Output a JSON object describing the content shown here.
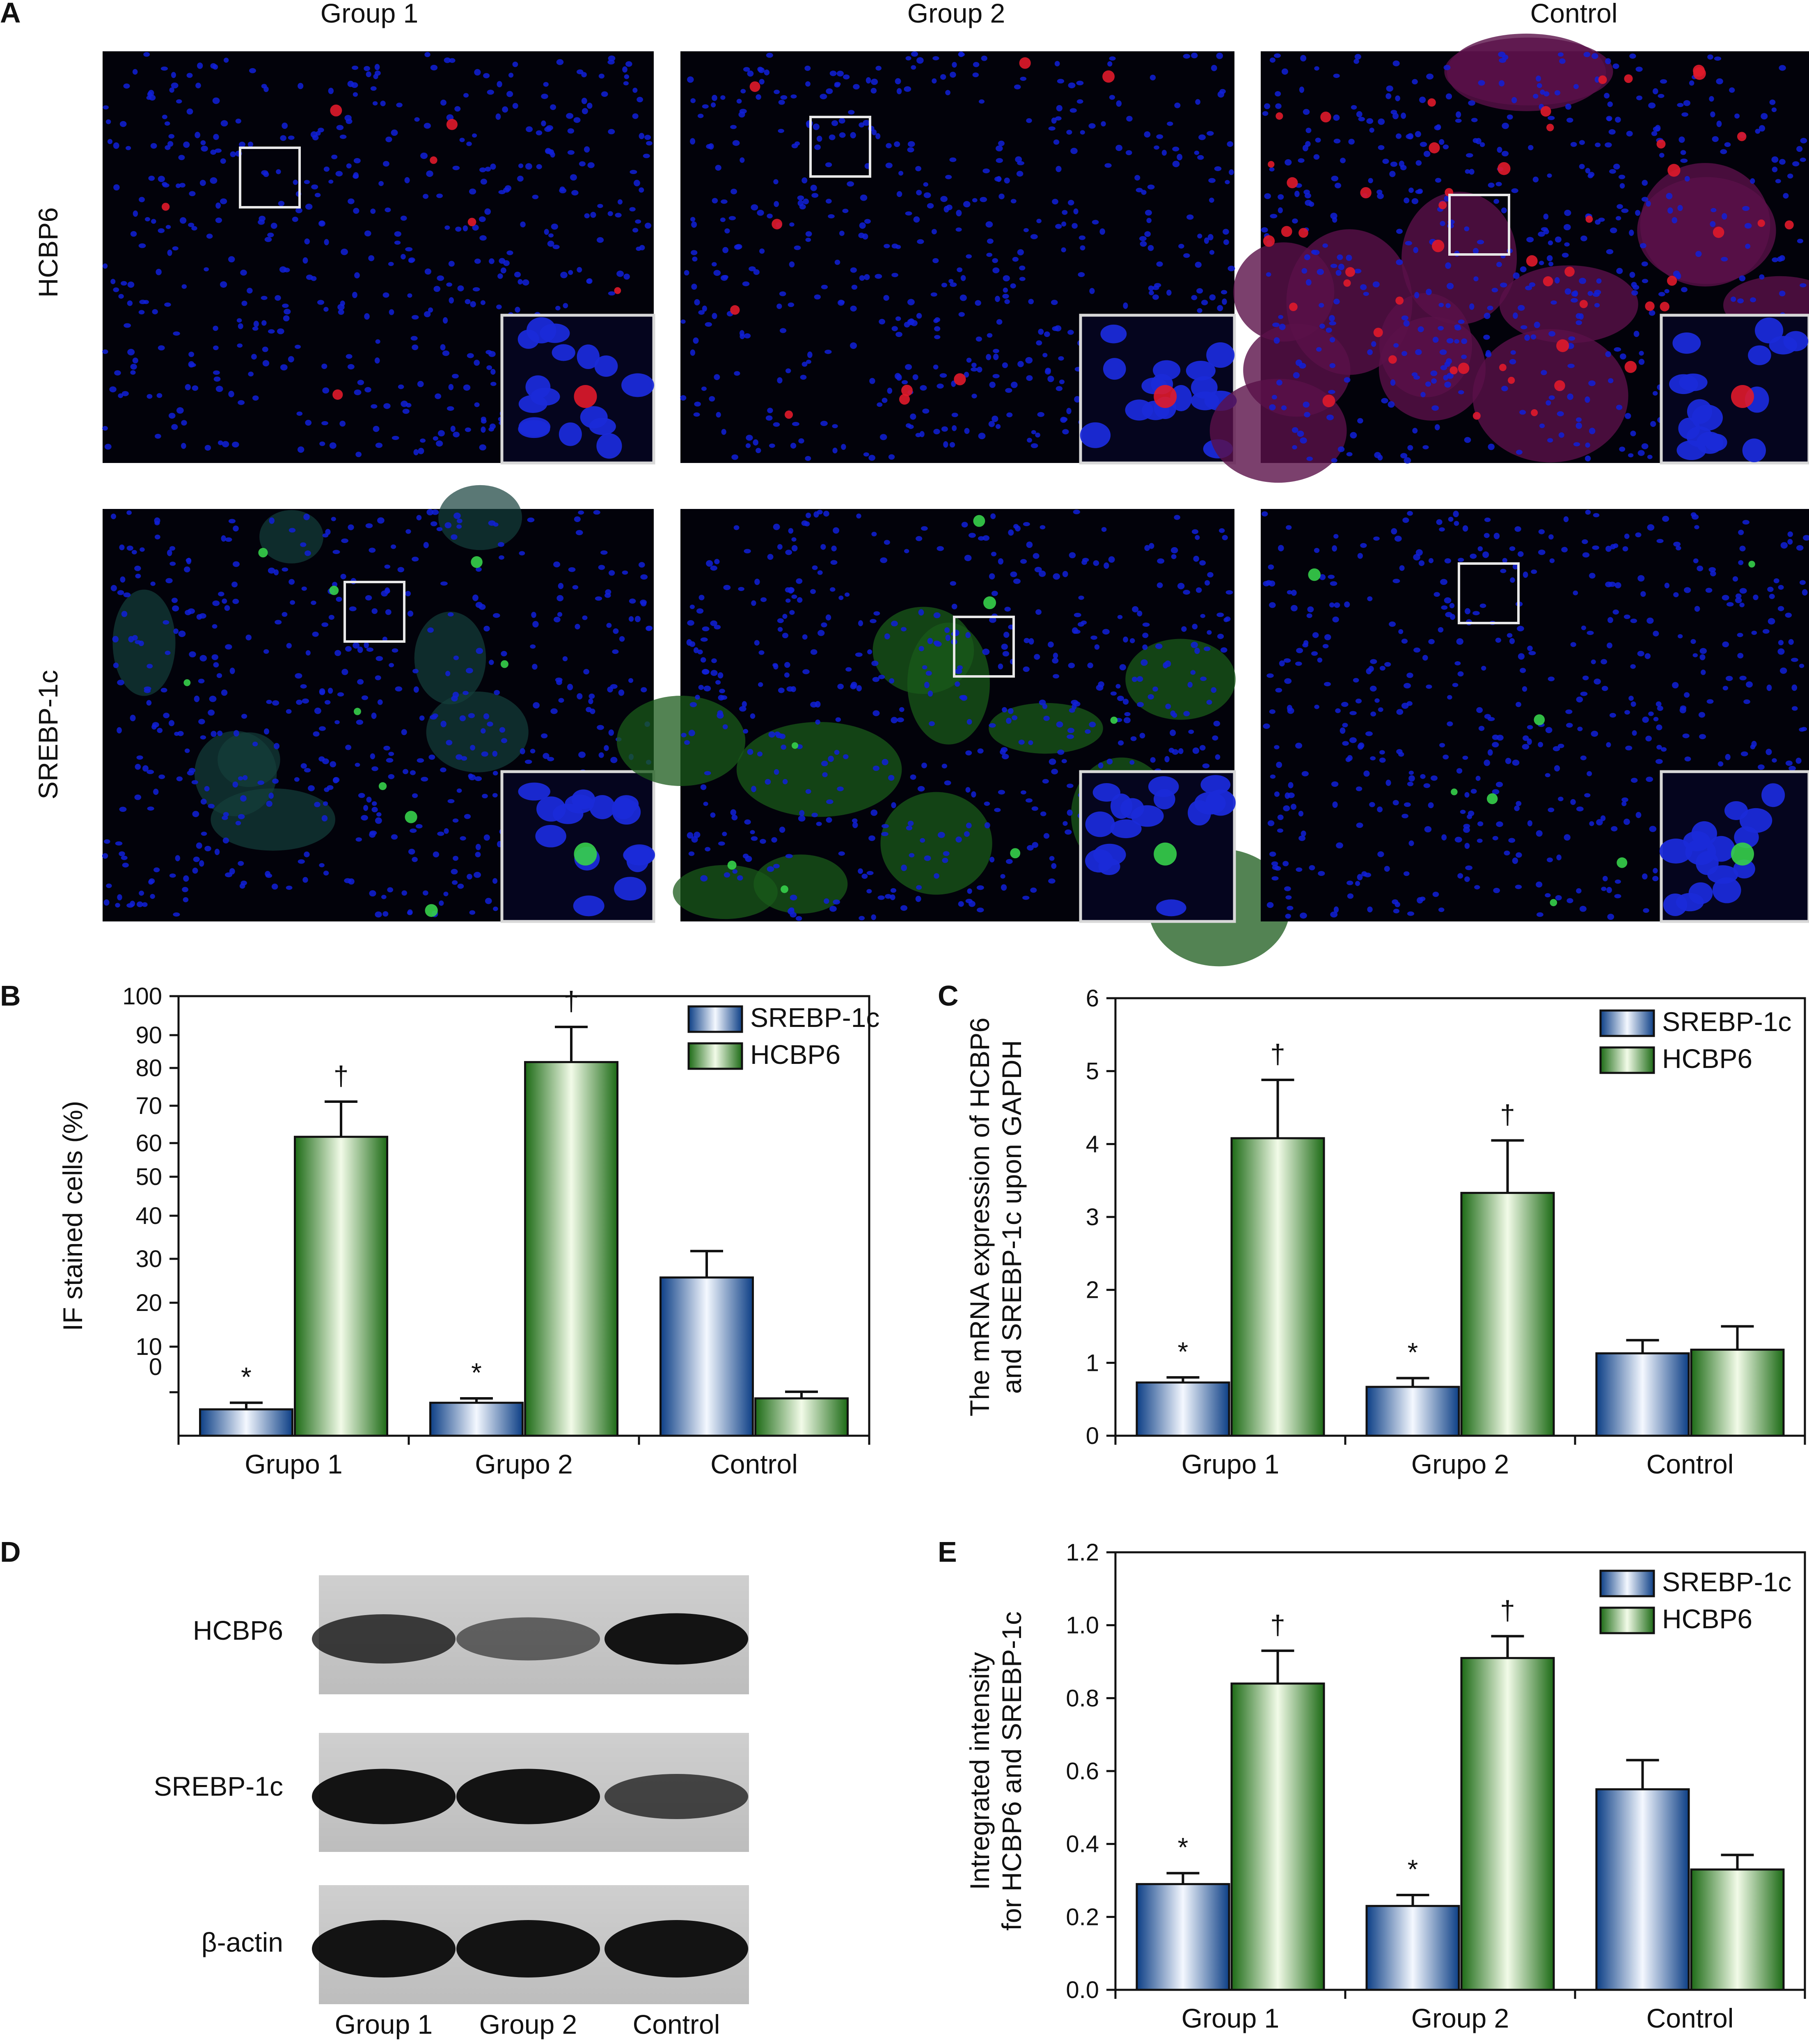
{
  "panel_letters": {
    "a": "A",
    "b": "B",
    "c": "C",
    "d": "D",
    "e": "E"
  },
  "panelA": {
    "column_headers": [
      "Group 1",
      "Group 2",
      "Control"
    ],
    "row_labels": [
      "HCBP6",
      "SREBP-1c"
    ]
  },
  "colors": {
    "srebp_blue": "#1f63b0",
    "hcbp6_green": "#3d9a2a",
    "nuclei_blue": "#1020d8",
    "hcbp6_red": "#e01a2a",
    "srebp_green": "#36d04a",
    "tissue_black": "#02020a"
  },
  "panelD": {
    "row_labels": [
      "HCBP6",
      "SREBP-1c",
      "β-actin"
    ],
    "lane_labels": [
      "Group 1",
      "Group 2",
      "Control"
    ]
  },
  "chart_data": [
    {
      "id": "B",
      "type": "bar",
      "categories": [
        "Grupo 1",
        "Grupo 2",
        "Control"
      ],
      "series": [
        {
          "name": "SREBP-1c",
          "values": [
            6,
            7.5,
            36
          ],
          "errors": [
            1.5,
            1,
            6
          ],
          "marks": [
            "*",
            "*",
            ""
          ]
        },
        {
          "name": "HCBP6",
          "values": [
            68,
            85,
            8.5
          ],
          "errors": [
            8,
            8,
            1.5
          ],
          "marks": [
            "†",
            "†",
            ""
          ]
        }
      ],
      "ylabel": "IF stained cells (%)",
      "ylim": [
        0,
        100
      ],
      "yticks": [
        "100",
        "90",
        "80",
        "70",
        "60",
        "50",
        "40",
        "30",
        "20",
        "10",
        "0"
      ],
      "legend": "top-right"
    },
    {
      "id": "C",
      "type": "bar",
      "categories": [
        "Grupo 1",
        "Grupo 2",
        "Control"
      ],
      "series": [
        {
          "name": "SREBP-1c",
          "values": [
            0.73,
            0.67,
            1.13
          ],
          "errors": [
            0.07,
            0.12,
            0.18
          ],
          "marks": [
            "*",
            "*",
            ""
          ]
        },
        {
          "name": "HCBP6",
          "values": [
            4.08,
            3.33,
            1.18
          ],
          "errors": [
            0.8,
            0.72,
            0.32
          ],
          "marks": [
            "†",
            "†",
            ""
          ]
        }
      ],
      "ylabel": "The mRNA expression of HCBP6 and SREBP-1c upon GAPDH",
      "ylabel_lines": [
        "The mRNA expression of HCBP6",
        "and SREBP-1c upon GAPDH"
      ],
      "ylim": [
        0,
        6
      ],
      "yticks": [
        "0",
        "1",
        "2",
        "3",
        "4",
        "5",
        "6"
      ],
      "legend": "top-right"
    },
    {
      "id": "E",
      "type": "bar",
      "categories": [
        "Group 1",
        "Group 2",
        "Control"
      ],
      "series": [
        {
          "name": "SREBP-1c",
          "values": [
            0.29,
            0.23,
            0.55
          ],
          "errors": [
            0.03,
            0.03,
            0.08
          ],
          "marks": [
            "*",
            "*",
            ""
          ]
        },
        {
          "name": "HCBP6",
          "values": [
            0.84,
            0.91,
            0.33
          ],
          "errors": [
            0.09,
            0.06,
            0.04
          ],
          "marks": [
            "†",
            "†",
            ""
          ]
        }
      ],
      "ylabel": "Intregrated intensity for HCBP6 and SREBP-1c",
      "ylabel_lines": [
        "Intregrated intensity",
        "for HCBP6 and SREBP-1c"
      ],
      "ylim": [
        0,
        1.2
      ],
      "yticks": [
        "0.0",
        "0.2",
        "0.4",
        "0.6",
        "0.8",
        "1.0",
        "1.2"
      ],
      "legend": "top-right"
    }
  ]
}
